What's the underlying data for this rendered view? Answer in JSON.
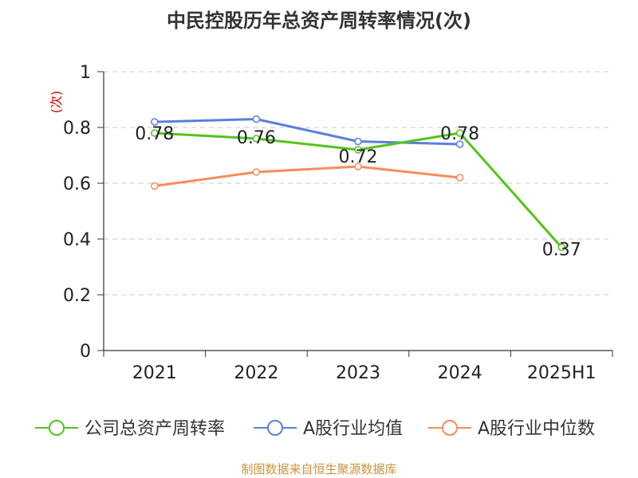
{
  "chart_data": {
    "type": "line",
    "title": "中民控股历年总资产周转率情况(次)",
    "ylabel": "(次)",
    "categories": [
      "2021",
      "2022",
      "2023",
      "2024",
      "2025H1"
    ],
    "ylim": [
      0,
      1
    ],
    "yticks": [
      0,
      0.2,
      0.4,
      0.6,
      0.8,
      1
    ],
    "ytick_labels": [
      "0",
      "0.2",
      "0.4",
      "0.6",
      "0.8",
      "1"
    ],
    "grid": true,
    "legend_position": "bottom",
    "series": [
      {
        "name": "公司总资产周转率",
        "color": "#52c41a",
        "values": [
          0.78,
          0.76,
          0.72,
          0.78,
          0.37
        ],
        "labels": [
          "0.78",
          "0.76",
          "0.72",
          "0.78",
          "0.37"
        ]
      },
      {
        "name": "A股行业均值",
        "color": "#5b7fde",
        "values": [
          0.82,
          0.83,
          0.75,
          0.74,
          null
        ]
      },
      {
        "name": "A股行业中位数",
        "color": "#f58d5c",
        "values": [
          0.59,
          0.64,
          0.66,
          0.62,
          null
        ]
      }
    ]
  },
  "source": {
    "text": "制图数据来自恒生聚源数据库",
    "color": "#c8943c"
  }
}
